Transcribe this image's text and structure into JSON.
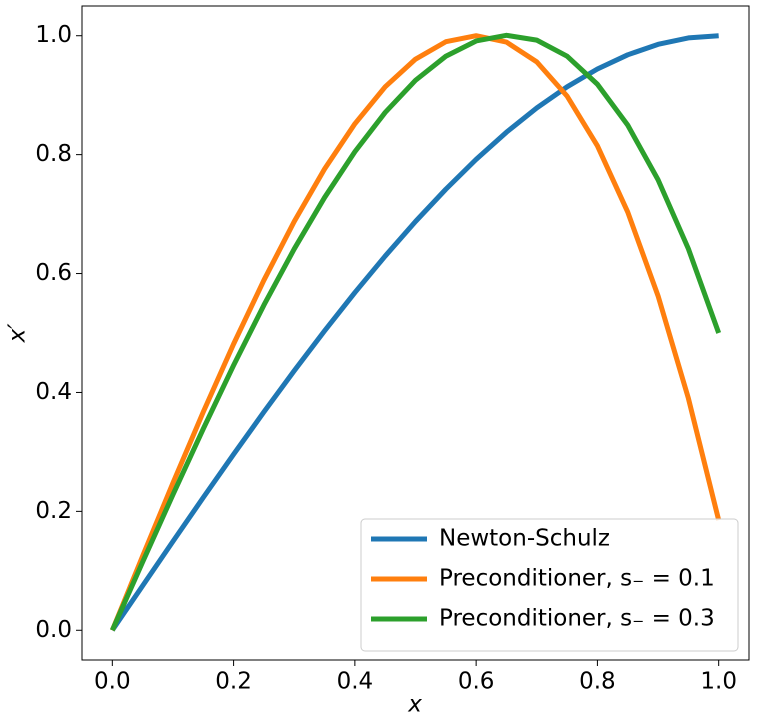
{
  "chart_data": {
    "type": "line",
    "xlabel": "x",
    "ylabel": "x′",
    "x": [
      0,
      0.05,
      0.1,
      0.15,
      0.2,
      0.25,
      0.3,
      0.35,
      0.4,
      0.45,
      0.5,
      0.55,
      0.6,
      0.65,
      0.7,
      0.75,
      0.8,
      0.85,
      0.9,
      0.95,
      1.0
    ],
    "series": [
      {
        "name": "Newton-Schulz",
        "color": "#1f77b4",
        "values": [
          0,
          0.0749,
          0.1495,
          0.2233,
          0.296,
          0.3672,
          0.4365,
          0.5036,
          0.568,
          0.6294,
          0.6875,
          0.7418,
          0.792,
          0.8377,
          0.8785,
          0.9141,
          0.944,
          0.9679,
          0.9855,
          0.9963,
          1.0
        ]
      },
      {
        "name": "Preconditioner, s₋ = 0.1",
        "color": "#ff7f0e",
        "values": [
          0,
          0.1247,
          0.2477,
          0.3672,
          0.4815,
          0.5888,
          0.6875,
          0.7758,
          0.8519,
          0.9141,
          0.9606,
          0.9899,
          1.0,
          0.9893,
          0.956,
          0.8984,
          0.8148,
          0.7034,
          0.5625,
          0.3903,
          0.1852
        ]
      },
      {
        "name": "Preconditioner, s₋ = 0.3",
        "color": "#2ca02c",
        "values": [
          0,
          0.1148,
          0.2282,
          0.3389,
          0.4456,
          0.5469,
          0.6414,
          0.7278,
          0.8048,
          0.871,
          0.925,
          0.9655,
          0.9912,
          1.0007,
          0.9926,
          0.9656,
          0.9184,
          0.8496,
          0.7578,
          0.6417,
          0.5
        ]
      }
    ],
    "xlim": [
      -0.05,
      1.05
    ],
    "ylim": [
      -0.05,
      1.05
    ],
    "xticks": [
      {
        "value": 0,
        "label": "0.0"
      },
      0.2,
      0.4,
      0.6,
      0.8,
      {
        "value": 1,
        "label": "1.0"
      }
    ],
    "yticks": [
      {
        "value": 0,
        "label": "0.0"
      },
      0.2,
      0.4,
      0.6,
      0.8,
      {
        "value": 1,
        "label": "1.0"
      }
    ],
    "grid": false,
    "legend": "lower right"
  }
}
